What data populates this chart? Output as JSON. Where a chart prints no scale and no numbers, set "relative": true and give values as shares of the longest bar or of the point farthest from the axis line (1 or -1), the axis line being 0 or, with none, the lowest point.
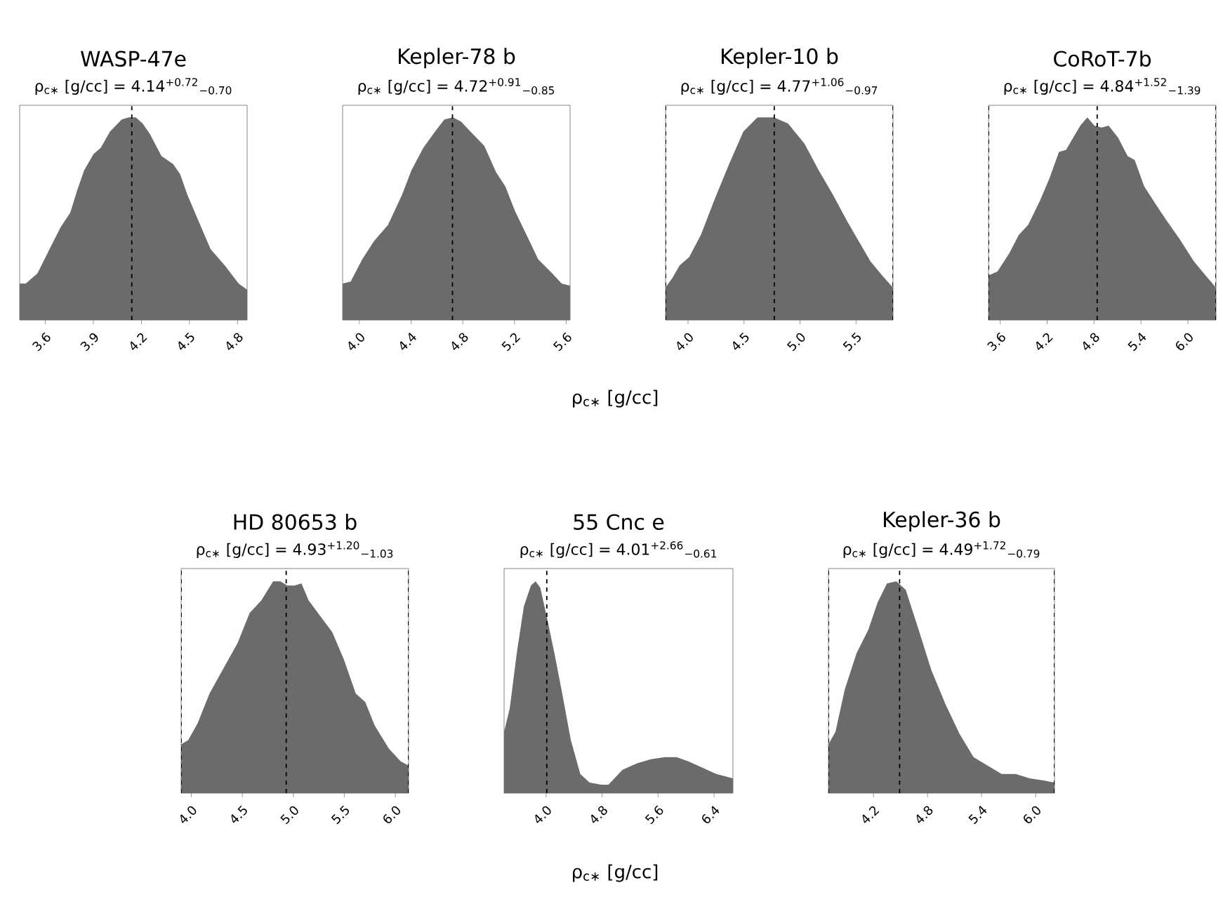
{
  "chart_data": [
    {
      "type": "area",
      "title": "WASP-47e",
      "subtitle": "ρ$_{c∗}$ [g/cc] = 4.14$^{+0.72}$$_{−0.70}$",
      "relative": true,
      "color": "#6b6b6b",
      "xlim": [
        3.44,
        4.86
      ],
      "xticks": [
        3.6,
        3.9,
        4.2,
        4.5,
        4.8
      ],
      "x": [
        3.44,
        3.478,
        3.551,
        3.639,
        3.697,
        3.756,
        3.799,
        3.843,
        3.902,
        3.946,
        4.004,
        4.077,
        4.121,
        4.165,
        4.208,
        4.252,
        4.325,
        4.398,
        4.442,
        4.486,
        4.545,
        4.632,
        4.72,
        4.807,
        4.86
      ],
      "values": [
        0.18,
        0.18,
        0.23,
        0.37,
        0.46,
        0.53,
        0.64,
        0.74,
        0.82,
        0.85,
        0.93,
        0.99,
        1,
        1,
        0.97,
        0.92,
        0.81,
        0.77,
        0.72,
        0.62,
        0.51,
        0.35,
        0.27,
        0.18,
        0.15
      ],
      "ref_lines": [
        {
          "axis": "x",
          "value": 4.14,
          "color": "#000000",
          "line_style": "dashed"
        }
      ]
    },
    {
      "type": "area",
      "title": "Kepler-78 b",
      "subtitle": "ρ$_{c∗}$ [g/cc] = 4.72$^{+0.91}$$_{−0.85}$",
      "xlabel": "ρ$_{c∗}$ [g/cc]",
      "relative": true,
      "color": "#6b6b6b",
      "xlim": [
        3.87,
        5.63
      ],
      "xticks": [
        {
          "value": 4,
          "label": "4.0"
        },
        4.4,
        4.8,
        5.2,
        5.6
      ],
      "x": [
        3.87,
        3.932,
        4.022,
        4.113,
        4.222,
        4.331,
        4.403,
        4.494,
        4.585,
        4.657,
        4.723,
        4.785,
        4.875,
        4.966,
        5.057,
        5.129,
        5.202,
        5.293,
        5.383,
        5.492,
        5.565,
        5.63
      ],
      "values": [
        0.18,
        0.19,
        0.3,
        0.39,
        0.47,
        0.62,
        0.74,
        0.85,
        0.93,
        0.99,
        1,
        0.98,
        0.92,
        0.86,
        0.73,
        0.66,
        0.54,
        0.42,
        0.3,
        0.23,
        0.18,
        0.17
      ],
      "ref_lines": [
        {
          "axis": "x",
          "value": 4.72,
          "color": "#000000",
          "line_style": "dashed"
        }
      ]
    },
    {
      "type": "area",
      "title": "Kepler-10 b",
      "subtitle": "ρ$_{c∗}$ [g/cc] = 4.77$^{+1.06}$$_{−0.97}$",
      "relative": true,
      "color": "#6b6b6b",
      "xlim": [
        3.8,
        5.83
      ],
      "xticks": [
        {
          "value": 4,
          "label": "4.0"
        },
        4.5,
        {
          "value": 5,
          "label": "5.0"
        },
        5.5
      ],
      "x": [
        3.8,
        3.863,
        3.926,
        4.01,
        4.115,
        4.241,
        4.367,
        4.494,
        4.62,
        4.767,
        4.893,
        5.04,
        5.166,
        5.292,
        5.418,
        5.523,
        5.628,
        5.733,
        5.83
      ],
      "values": [
        0.16,
        0.21,
        0.27,
        0.31,
        0.42,
        0.6,
        0.77,
        0.93,
        1,
        1,
        0.97,
        0.87,
        0.74,
        0.62,
        0.49,
        0.39,
        0.29,
        0.22,
        0.16
      ],
      "ref_lines": [
        {
          "axis": "x",
          "value": 3.8,
          "color": "#000000",
          "line_style": "dashed"
        },
        {
          "axis": "x",
          "value": 4.77,
          "color": "#000000",
          "line_style": "dashed"
        },
        {
          "axis": "x",
          "value": 5.83,
          "color": "#000000",
          "line_style": "dashed"
        }
      ]
    },
    {
      "type": "area",
      "title": "CoRoT-7b",
      "subtitle": "ρ$_{c∗}$ [g/cc] = 4.84$^{+1.52}$$_{−1.39}$",
      "relative": true,
      "color": "#6b6b6b",
      "xlim": [
        3.45,
        6.36
      ],
      "xticks": [
        3.6,
        4.2,
        4.8,
        5.4,
        {
          "value": 6,
          "label": "6.0"
        }
      ],
      "x": [
        3.45,
        3.565,
        3.716,
        3.837,
        3.958,
        4.109,
        4.23,
        4.351,
        4.442,
        4.533,
        4.624,
        4.714,
        4.805,
        4.896,
        4.987,
        5.108,
        5.229,
        5.32,
        5.441,
        5.592,
        5.713,
        5.894,
        6.076,
        6.227,
        6.36
      ],
      "values": [
        0.22,
        0.24,
        0.33,
        0.42,
        0.47,
        0.59,
        0.7,
        0.83,
        0.84,
        0.9,
        0.96,
        1,
        0.96,
        0.95,
        0.96,
        0.9,
        0.81,
        0.79,
        0.66,
        0.57,
        0.5,
        0.4,
        0.29,
        0.22,
        0.16
      ],
      "ref_lines": [
        {
          "axis": "x",
          "value": 3.45,
          "color": "#000000",
          "line_style": "dashed"
        },
        {
          "axis": "x",
          "value": 4.84,
          "color": "#000000",
          "line_style": "dashed"
        },
        {
          "axis": "x",
          "value": 6.36,
          "color": "#000000",
          "line_style": "dashed"
        }
      ]
    },
    {
      "type": "area",
      "title": "HD 80653 b",
      "subtitle": "ρ$_{c∗}$ [g/cc] = 4.93$^{+1.20}$$_{−1.03}$",
      "relative": true,
      "color": "#6b6b6b",
      "xlim": [
        3.9,
        6.13
      ],
      "xticks": [
        {
          "value": 4,
          "label": "4.0"
        },
        4.5,
        {
          "value": 5,
          "label": "5.0"
        },
        5.5,
        {
          "value": 6,
          "label": "6.0"
        }
      ],
      "x": [
        3.9,
        3.969,
        4.062,
        4.178,
        4.316,
        4.455,
        4.571,
        4.687,
        4.802,
        4.872,
        4.941,
        5.011,
        5.08,
        5.149,
        5.242,
        5.381,
        5.496,
        5.612,
        5.705,
        5.797,
        5.936,
        6.052,
        6.13
      ],
      "values": [
        0.23,
        0.25,
        0.33,
        0.47,
        0.59,
        0.71,
        0.85,
        0.91,
        1,
        1,
        0.98,
        0.98,
        0.99,
        0.91,
        0.85,
        0.76,
        0.63,
        0.47,
        0.43,
        0.32,
        0.21,
        0.15,
        0.13
      ],
      "ref_lines": [
        {
          "axis": "x",
          "value": 3.9,
          "color": "#000000",
          "line_style": "dashed"
        },
        {
          "axis": "x",
          "value": 4.93,
          "color": "#000000",
          "line_style": "dashed"
        },
        {
          "axis": "x",
          "value": 6.13,
          "color": "#000000",
          "line_style": "dashed"
        }
      ]
    },
    {
      "type": "area",
      "title": "55 Cnc e",
      "subtitle": "ρ$_{c∗}$ [g/cc] = 4.01$^{+2.66}$$_{−0.61}$",
      "xlabel": "ρ$_{c∗}$ [g/cc]",
      "relative": true,
      "color": "#6b6b6b",
      "xlim": [
        3.4,
        6.67
      ],
      "xticks": [
        {
          "value": 4,
          "label": "4.0"
        },
        4.8,
        5.6,
        6.4
      ],
      "x": [
        3.4,
        3.481,
        3.581,
        3.682,
        3.783,
        3.85,
        3.917,
        4.018,
        4.119,
        4.219,
        4.354,
        4.488,
        4.622,
        4.79,
        4.891,
        5.092,
        5.294,
        5.495,
        5.697,
        5.864,
        6.032,
        6.234,
        6.435,
        6.67
      ],
      "values": [
        0.29,
        0.4,
        0.66,
        0.88,
        0.98,
        1,
        0.97,
        0.82,
        0.66,
        0.49,
        0.25,
        0.09,
        0.05,
        0.04,
        0.04,
        0.11,
        0.14,
        0.16,
        0.17,
        0.17,
        0.15,
        0.12,
        0.09,
        0.07
      ],
      "ref_lines": [
        {
          "axis": "x",
          "value": 4.01,
          "color": "#000000",
          "line_style": "dashed"
        }
      ]
    },
    {
      "type": "area",
      "title": "Kepler-36 b",
      "subtitle": "ρ$_{c∗}$ [g/cc] = 4.49$^{+1.72}$$_{−0.79}$",
      "relative": true,
      "color": "#6b6b6b",
      "xlim": [
        3.7,
        6.21
      ],
      "xticks": [
        4.2,
        4.8,
        5.4,
        {
          "value": 6,
          "label": "6.0"
        }
      ],
      "x": [
        3.7,
        3.778,
        3.882,
        4.012,
        4.142,
        4.246,
        4.35,
        4.454,
        4.558,
        4.687,
        4.843,
        4.999,
        5.155,
        5.311,
        5.467,
        5.623,
        5.779,
        5.935,
        6.091,
        6.21
      ],
      "values": [
        0.23,
        0.29,
        0.49,
        0.66,
        0.77,
        0.9,
        0.99,
        1,
        0.96,
        0.79,
        0.58,
        0.42,
        0.28,
        0.17,
        0.13,
        0.09,
        0.09,
        0.07,
        0.06,
        0.05
      ],
      "ref_lines": [
        {
          "axis": "x",
          "value": 3.7,
          "color": "#000000",
          "line_style": "dashed"
        },
        {
          "axis": "x",
          "value": 4.49,
          "color": "#000000",
          "line_style": "dashed"
        },
        {
          "axis": "x",
          "value": 6.21,
          "color": "#000000",
          "line_style": "dashed"
        }
      ]
    }
  ]
}
